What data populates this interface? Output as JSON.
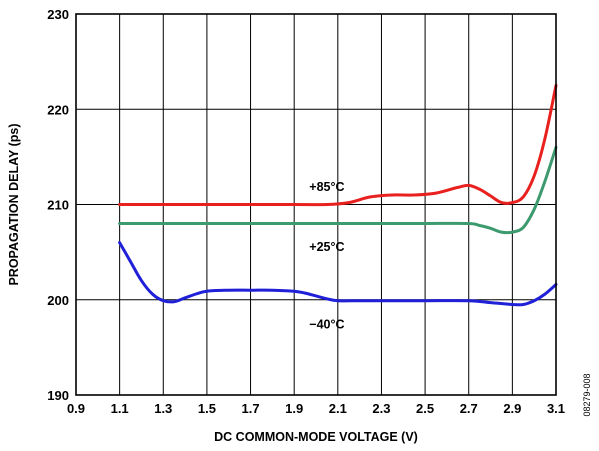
{
  "chart_data": {
    "type": "line",
    "xlabel": "DC COMMON-MODE VOLTAGE (V)",
    "ylabel": "PROPAGATION DELAY (ps)",
    "xlim": [
      0.9,
      3.1
    ],
    "ylim": [
      190,
      230
    ],
    "x_ticks": [
      "0.9",
      "1.1",
      "1.3",
      "1.5",
      "1.7",
      "1.9",
      "2.1",
      "2.3",
      "2.5",
      "2.7",
      "2.9",
      "3.1"
    ],
    "y_ticks": [
      "190",
      "200",
      "210",
      "220",
      "230"
    ],
    "grid": true,
    "legend": "none",
    "annotations": [
      "+85°C",
      "+25°C",
      "−40°C"
    ],
    "figure_id": "08279-008",
    "series": [
      {
        "name": "+85°C",
        "color": "#e8211f",
        "x": [
          1.1,
          1.5,
          1.9,
          2.05,
          2.15,
          2.25,
          2.35,
          2.45,
          2.55,
          2.65,
          2.7,
          2.75,
          2.8,
          2.85,
          2.9,
          2.95,
          3.0,
          3.05,
          3.1
        ],
        "y": [
          210,
          210,
          210,
          210,
          210.2,
          210.8,
          211,
          211,
          211.2,
          211.8,
          212,
          211.6,
          210.9,
          210.2,
          210.2,
          210.8,
          213,
          217,
          222.5
        ]
      },
      {
        "name": "+25°C",
        "color": "#3c9a6e",
        "x": [
          1.1,
          1.5,
          1.9,
          2.3,
          2.5,
          2.7,
          2.75,
          2.8,
          2.85,
          2.9,
          2.95,
          3.0,
          3.05,
          3.1
        ],
        "y": [
          208,
          208,
          208,
          208,
          208,
          208,
          207.8,
          207.5,
          207.1,
          207.1,
          207.6,
          209.5,
          212.5,
          216
        ]
      },
      {
        "name": "−40°C",
        "color": "#2020d8",
        "x": [
          1.1,
          1.15,
          1.2,
          1.25,
          1.3,
          1.35,
          1.4,
          1.45,
          1.5,
          1.6,
          1.7,
          1.8,
          1.9,
          1.95,
          2.0,
          2.05,
          2.1,
          2.2,
          2.3,
          2.5,
          2.7,
          2.8,
          2.9,
          2.95,
          3.0,
          3.05,
          3.1
        ],
        "y": [
          206,
          204,
          202,
          200.6,
          199.9,
          199.8,
          200.2,
          200.6,
          200.9,
          201,
          201,
          201,
          200.9,
          200.7,
          200.4,
          200.1,
          199.9,
          199.9,
          199.9,
          199.9,
          199.9,
          199.7,
          199.5,
          199.5,
          199.9,
          200.6,
          201.6
        ]
      }
    ]
  }
}
